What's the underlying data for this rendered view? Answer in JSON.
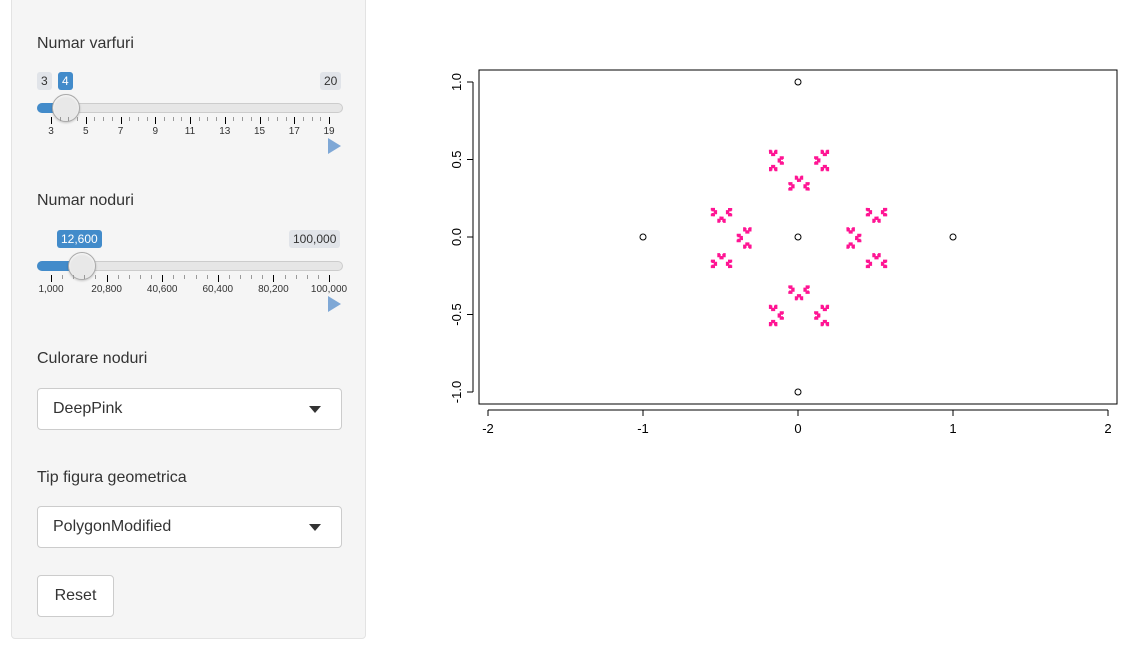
{
  "sidebar": {
    "slider_vertices": {
      "label": "Numar varfuri",
      "min_label": "3",
      "max_label": "20",
      "value_label": "4",
      "min": 3,
      "max": 20,
      "value": 4,
      "ticks": [
        "3",
        "5",
        "7",
        "9",
        "11",
        "13",
        "15",
        "17",
        "19"
      ]
    },
    "slider_nodes": {
      "label": "Numar noduri",
      "min_label": "1,000",
      "max_label": "100,000",
      "value_label": "12,600",
      "min": 1000,
      "max": 100000,
      "value": 12600,
      "ticks": [
        "1,000",
        "20,800",
        "40,600",
        "60,400",
        "80,200",
        "100,000"
      ]
    },
    "color_select": {
      "label": "Culorare noduri",
      "value": "DeepPink"
    },
    "shape_select": {
      "label": "Tip figura geometrica",
      "value": "PolygonModified"
    },
    "reset_label": "Reset"
  },
  "chart_data": {
    "type": "scatter",
    "title": "",
    "xlabel": "",
    "ylabel": "",
    "xlim": [
      -2,
      2
    ],
    "ylim": [
      -1,
      1
    ],
    "x_ticks": [
      "-2",
      "-1",
      "0",
      "1",
      "2"
    ],
    "y_ticks": [
      "-1.0",
      "-0.5",
      "0.0",
      "0.5",
      "1.0"
    ],
    "point_color": "#ff1493",
    "vertices": [
      [
        0,
        1
      ],
      [
        -1,
        0
      ],
      [
        0,
        0
      ],
      [
        1,
        0
      ],
      [
        0,
        -1
      ]
    ],
    "node_count": 12600
  }
}
